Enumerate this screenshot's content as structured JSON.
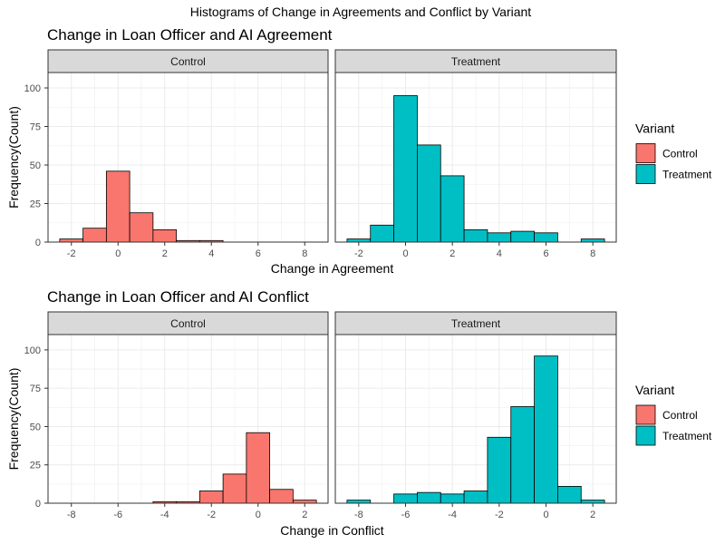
{
  "title": "Histograms of Change in Agreements and Conflict by Variant",
  "colors": {
    "Control": "#F8766D",
    "Treatment": "#00BFC4"
  },
  "chart_data": [
    {
      "type": "bar",
      "title": "Change in Loan Officer and AI Agreement",
      "xlabel": "Change in Agreement",
      "ylabel": "Frequency(Count)",
      "xlim": [
        -3,
        9
      ],
      "ylim": [
        0,
        110
      ],
      "xticks": [
        -2,
        0,
        2,
        4,
        6,
        8
      ],
      "yticks": [
        0,
        25,
        50,
        75,
        100
      ],
      "facets": [
        {
          "label": "Control",
          "variant": "Control",
          "bin_centers": [
            -2,
            -1,
            0,
            1,
            2,
            3,
            4,
            5,
            6,
            7,
            8
          ],
          "values": [
            2,
            9,
            46,
            19,
            8,
            1,
            1,
            0,
            0,
            0,
            0
          ]
        },
        {
          "label": "Treatment",
          "variant": "Treatment",
          "bin_centers": [
            -2,
            -1,
            0,
            1,
            2,
            3,
            4,
            5,
            6,
            7,
            8
          ],
          "values": [
            2,
            11,
            95,
            63,
            43,
            8,
            6,
            7,
            6,
            0,
            2
          ]
        }
      ],
      "legend": {
        "title": "Variant",
        "entries": [
          "Control",
          "Treatment"
        ],
        "position": "right"
      }
    },
    {
      "type": "bar",
      "title": "Change in Loan Officer and AI Conflict",
      "xlabel": "Change in Conflict",
      "ylabel": "Frequency(Count)",
      "xlim": [
        -9,
        3
      ],
      "ylim": [
        0,
        110
      ],
      "xticks": [
        -8,
        -6,
        -4,
        -2,
        0,
        2
      ],
      "yticks": [
        0,
        25,
        50,
        75,
        100
      ],
      "facets": [
        {
          "label": "Control",
          "variant": "Control",
          "bin_centers": [
            -8,
            -7,
            -6,
            -5,
            -4,
            -3,
            -2,
            -1,
            0,
            1,
            2
          ],
          "values": [
            0,
            0,
            0,
            0,
            1,
            1,
            8,
            19,
            46,
            9,
            2
          ]
        },
        {
          "label": "Treatment",
          "variant": "Treatment",
          "bin_centers": [
            -8,
            -7,
            -6,
            -5,
            -4,
            -3,
            -2,
            -1,
            0,
            1,
            2
          ],
          "values": [
            2,
            0,
            6,
            7,
            6,
            8,
            43,
            63,
            96,
            11,
            2
          ]
        }
      ],
      "legend": {
        "title": "Variant",
        "entries": [
          "Control",
          "Treatment"
        ],
        "position": "right"
      }
    }
  ]
}
